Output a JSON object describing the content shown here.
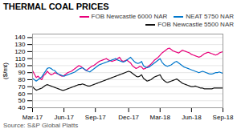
{
  "chart_data": {
    "type": "line",
    "title": "THERMAL COAL PRICES",
    "ylabel": "($/mt)",
    "annotations": [
      "Source: S&P Global Platts"
    ],
    "categories": [
      "Mar-17",
      null,
      null,
      null,
      null,
      null,
      null,
      null,
      null,
      null,
      null,
      null,
      null,
      null,
      null,
      null,
      null,
      "Jun-17",
      null,
      null,
      null,
      null,
      null,
      null,
      null,
      null,
      null,
      null,
      null,
      null,
      null,
      null,
      null,
      null,
      "Sep-17",
      null,
      null,
      null,
      null,
      null,
      null,
      null,
      null,
      null,
      null,
      null,
      null,
      null,
      null,
      null,
      null,
      null,
      "Dec-17",
      null,
      null,
      null,
      null,
      null,
      null,
      null,
      null,
      null,
      null,
      null,
      null,
      null,
      null,
      null,
      null,
      "Mar-18",
      null,
      null,
      null,
      null,
      null,
      null,
      null,
      null,
      null,
      null,
      null,
      null,
      null,
      null,
      null,
      null,
      "Jun-18",
      null,
      null,
      null,
      null,
      null,
      null,
      null,
      null,
      null,
      null,
      null,
      null,
      null,
      null,
      null,
      null,
      "Sep-18"
    ],
    "series": [
      {
        "name": "FOB Newcastle 6000 NAR",
        "color": "#e8007a",
        "values": [
          93,
          88,
          83,
          85,
          82,
          80,
          86,
          88,
          92,
          89,
          87,
          88,
          90,
          89,
          88,
          86,
          85,
          86,
          88,
          90,
          91,
          92,
          94,
          96,
          98,
          100,
          99,
          97,
          95,
          93,
          95,
          97,
          99,
          100,
          102,
          104,
          106,
          107,
          108,
          109,
          110,
          108,
          107,
          106,
          107,
          108,
          110,
          112,
          108,
          106,
          107,
          108,
          106,
          104,
          100,
          98,
          96,
          97,
          99,
          98,
          95,
          96,
          98,
          100,
          102,
          105,
          108,
          110,
          112,
          115,
          118,
          120,
          122,
          124,
          125,
          123,
          121,
          120,
          119,
          118,
          120,
          122,
          121,
          120,
          119,
          118,
          116,
          115,
          114,
          113,
          112,
          113,
          115,
          117,
          118,
          119,
          118,
          117,
          116,
          115,
          116,
          118,
          119,
          120
        ]
      },
      {
        "name": "NEAT 5750 NAR",
        "color": "#0077cc",
        "values": [
          82,
          80,
          78,
          80,
          82,
          84,
          88,
          92,
          96,
          97,
          96,
          94,
          93,
          90,
          88,
          87,
          86,
          85,
          86,
          87,
          88,
          89,
          90,
          91,
          93,
          95,
          96,
          97,
          95,
          93,
          92,
          91,
          93,
          95,
          97,
          99,
          101,
          102,
          103,
          104,
          105,
          106,
          107,
          108,
          109,
          110,
          108,
          107,
          106,
          105,
          106,
          108,
          110,
          112,
          109,
          106,
          104,
          103,
          104,
          106,
          100,
          98,
          97,
          98,
          100,
          102,
          104,
          106,
          108,
          110,
          105,
          102,
          100,
          99,
          100,
          101,
          103,
          105,
          106,
          104,
          102,
          100,
          98,
          97,
          96,
          95,
          94,
          93,
          92,
          91,
          90,
          91,
          92,
          91,
          90,
          89,
          88,
          88,
          89,
          90,
          90,
          91,
          90,
          89
        ]
      },
      {
        "name": "FOB Newcastle 5500 NAR",
        "color": "#111111",
        "values": [
          70,
          67,
          65,
          66,
          67,
          68,
          70,
          72,
          73,
          72,
          71,
          70,
          69,
          68,
          67,
          66,
          65,
          65,
          66,
          67,
          68,
          69,
          70,
          71,
          72,
          73,
          73,
          74,
          73,
          72,
          71,
          71,
          72,
          73,
          74,
          75,
          76,
          77,
          78,
          79,
          80,
          81,
          82,
          83,
          84,
          85,
          86,
          87,
          88,
          89,
          90,
          91,
          92,
          91,
          89,
          87,
          85,
          84,
          85,
          87,
          82,
          80,
          78,
          79,
          80,
          82,
          84,
          85,
          86,
          87,
          82,
          79,
          77,
          76,
          77,
          78,
          79,
          80,
          81,
          79,
          77,
          75,
          74,
          73,
          72,
          71,
          70,
          70,
          71,
          70,
          69,
          68,
          68,
          67,
          67,
          67,
          67,
          67,
          68,
          68,
          68,
          68,
          68,
          68
        ]
      }
    ],
    "ylim": [
      40,
      145
    ],
    "yticks": [
      40,
      50,
      60,
      70,
      80,
      90,
      100,
      110,
      120,
      130,
      140
    ],
    "grid": true,
    "legend": "upper right"
  }
}
